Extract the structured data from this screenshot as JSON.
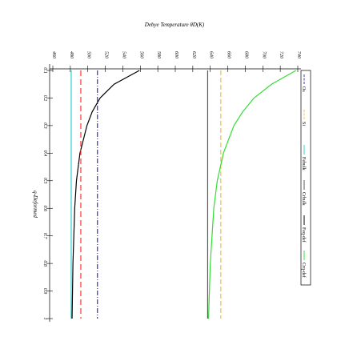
{
  "chart_data": {
    "type": "line",
    "title": "Debye Temperature θD(K)",
    "x_label": "q-Deformed",
    "x": [
      0.1,
      0.15,
      0.2,
      0.25,
      0.3,
      0.4,
      0.5,
      0.6,
      0.7,
      0.8,
      0.9,
      1.0
    ],
    "xlim": [
      0.1,
      1.0
    ],
    "xticks": [
      0.1,
      0.2,
      0.3,
      0.4,
      0.5,
      0.6,
      0.7,
      0.8,
      0.9,
      1.0
    ],
    "ylim": [
      460,
      740
    ],
    "yticks": [
      460,
      480,
      500,
      520,
      540,
      560,
      580,
      600,
      620,
      640,
      660,
      680,
      700,
      720,
      740
    ],
    "series": [
      {
        "name": "Os",
        "color": "#3333cc",
        "dash": "6,2,1,2",
        "values": [
          511,
          511,
          511,
          511,
          511,
          511,
          511,
          511,
          511,
          511,
          511,
          511
        ]
      },
      {
        "name": "Si",
        "color": "#f0c040",
        "dash": "6,3",
        "values": [
          652,
          652,
          652,
          652,
          652,
          652,
          652,
          652,
          652,
          652,
          652,
          652
        ]
      },
      {
        "name": "Febulk",
        "color": "#33cccc",
        "values": [
          481,
          481,
          481,
          481,
          481,
          481,
          481,
          481,
          481,
          481,
          481,
          481
        ]
      },
      {
        "name": "Crbulk",
        "color": "#555555",
        "values": [
          637,
          637,
          637,
          637,
          637,
          637,
          637,
          637,
          637,
          637,
          637,
          637
        ]
      },
      {
        "name": "Feq-def",
        "color": "#000000",
        "values": [
          559,
          530,
          514,
          505,
          499,
          491,
          487,
          485,
          484,
          483,
          482.5,
          482
        ]
      },
      {
        "name": "Crq-def",
        "color": "#33dd33",
        "values": [
          738,
          710,
          690,
          677,
          667,
          655,
          648,
          644,
          642,
          640,
          639,
          638
        ]
      },
      {
        "color": "#ff3333",
        "dash": "7,4",
        "values": [
          492,
          492,
          492,
          492,
          492,
          492,
          492,
          492,
          492,
          492,
          492,
          492
        ]
      }
    ]
  }
}
